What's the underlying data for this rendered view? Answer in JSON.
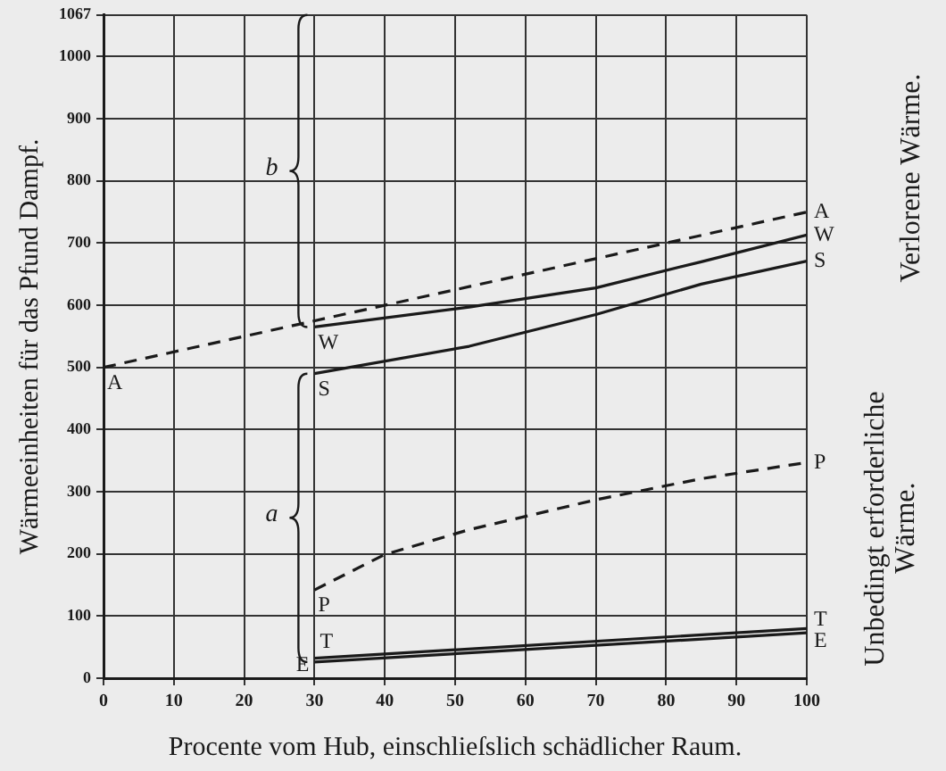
{
  "chart_data": {
    "type": "line",
    "xlabel": "Procente vom Hub, einschlieſslich schädlicher Raum.",
    "ylabel": "Wärmeeinheiten für das Pfund Dampf.",
    "xlim": [
      0,
      100
    ],
    "xticks": [
      0,
      10,
      20,
      30,
      40,
      50,
      60,
      70,
      80,
      90,
      100
    ],
    "ylim": [
      0,
      1067
    ],
    "yticks": [
      0,
      100,
      200,
      300,
      400,
      500,
      600,
      700,
      800,
      900,
      1000,
      1067
    ],
    "grid": true,
    "legend": false,
    "marker": "none",
    "series": [
      {
        "color": "#1a1a1a",
        "line_style": "dashed",
        "x": [
          0,
          50,
          100
        ],
        "values": [
          500,
          625,
          750
        ]
      },
      {
        "color": "#1a1a1a",
        "line_style": "solid",
        "x": [
          30,
          52,
          70,
          85,
          100
        ],
        "values": [
          565,
          597,
          628,
          670,
          713
        ]
      },
      {
        "color": "#1a1a1a",
        "line_style": "solid",
        "x": [
          30,
          52,
          70,
          85,
          100
        ],
        "values": [
          490,
          534,
          585,
          634,
          671
        ]
      },
      {
        "color": "#1a1a1a",
        "line_style": "dashed",
        "x": [
          30,
          40,
          52,
          70,
          85,
          100
        ],
        "values": [
          142,
          199,
          239,
          287,
          321,
          347
        ]
      },
      {
        "color": "#1a1a1a",
        "line_style": "solid",
        "x": [
          30,
          100
        ],
        "values": [
          32,
          80
        ]
      },
      {
        "color": "#1a1a1a",
        "line_style": "solid",
        "x": [
          30,
          100
        ],
        "values": [
          26,
          73
        ]
      }
    ],
    "annotations": [
      {
        "text": "A",
        "x": 0,
        "y": 500
      },
      {
        "text": "A",
        "x": 100,
        "y": 750
      },
      {
        "text": "W",
        "x": 30,
        "y": 565
      },
      {
        "text": "W",
        "x": 100,
        "y": 713
      },
      {
        "text": "S",
        "x": 30,
        "y": 490
      },
      {
        "text": "S",
        "x": 100,
        "y": 671
      },
      {
        "text": "P",
        "x": 30,
        "y": 142
      },
      {
        "text": "P",
        "x": 100,
        "y": 347
      },
      {
        "text": "T",
        "x": 30,
        "y": 32
      },
      {
        "text": "T",
        "x": 100,
        "y": 80
      },
      {
        "text": "E",
        "x": 30,
        "y": 26
      },
      {
        "text": "E",
        "x": 100,
        "y": 73
      },
      "b",
      "a",
      "Verlorene Wärme.",
      "Unbedingt erforderliche Wärme."
    ]
  }
}
